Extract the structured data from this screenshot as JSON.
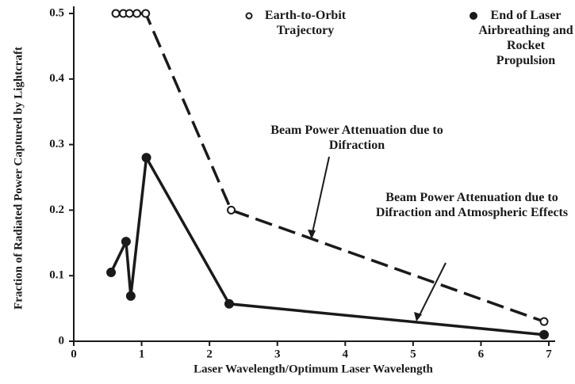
{
  "chart_data": {
    "type": "line",
    "x_label": "Laser Wavelength/Optimum Laser Wavelength",
    "y_label": "Fraction of Radiated Power Captured by Lightcraft",
    "xlim": [
      0,
      7
    ],
    "ylim": [
      0,
      0.5
    ],
    "xticks": [
      0,
      1,
      2,
      3,
      4,
      5,
      6,
      7
    ],
    "yticks": [
      0,
      0.1,
      0.2,
      0.3,
      0.4,
      0.5
    ],
    "series": [
      {
        "name": "Earth-to-Orbit Trajectory",
        "color": "#1a1a1a",
        "dashed": true,
        "marker": "open",
        "x": [
          0.62,
          0.73,
          0.82,
          0.93,
          1.06,
          2.32,
          6.93
        ],
        "values": [
          0.5,
          0.5,
          0.5,
          0.5,
          0.5,
          0.2,
          0.03
        ]
      },
      {
        "name": "End of Laser Airbreathing and Rocket Propulsion",
        "color": "#1a1a1a",
        "dashed": false,
        "marker": "filled",
        "x": [
          0.55,
          0.77,
          0.84,
          1.07,
          2.29,
          6.93
        ],
        "values": [
          0.105,
          0.152,
          0.069,
          0.28,
          0.057,
          0.01
        ]
      }
    ],
    "annotations": [
      "Beam Power Attenuation due to Difraction",
      "Beam Power Attenuation due to Difraction and Atmospheric Effects"
    ]
  }
}
